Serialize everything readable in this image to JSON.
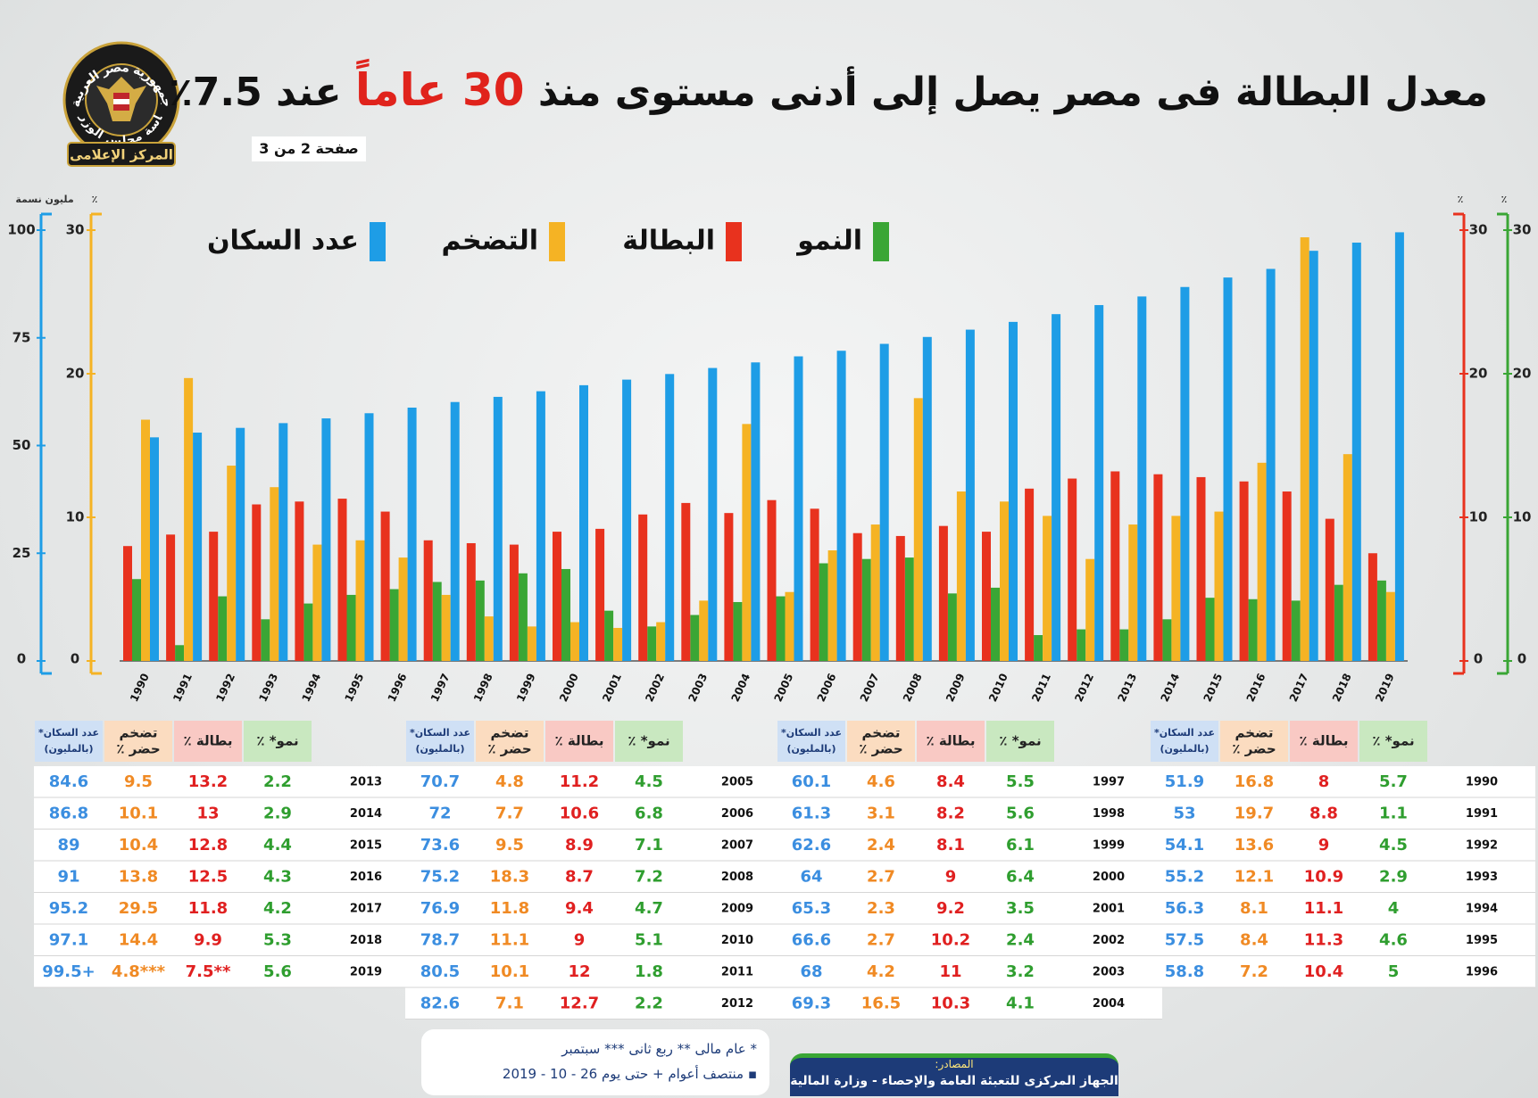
{
  "header": {
    "logo_top": "جمهورية مصر العربية",
    "logo_middle": "رئاسة مجلس الوزراء",
    "logo_bottom": "المركز الإعلامى",
    "title": [
      "معدل البطالة فى مصر يصل إلى أدنى مستوى منذ",
      "30 عاماً",
      "عند 7.5٪"
    ],
    "page": "صفحة 2 من 3"
  },
  "chart_data": {
    "type": "bar",
    "categories": [
      "1990",
      "1991",
      "1992",
      "1993",
      "1994",
      "1995",
      "1996",
      "1997",
      "1998",
      "1999",
      "2000",
      "2001",
      "2002",
      "2003",
      "2004",
      "2005",
      "2006",
      "2007",
      "2008",
      "2009",
      "2010",
      "2011",
      "2012",
      "2013",
      "2014",
      "2015",
      "2016",
      "2017",
      "2018",
      "2019"
    ],
    "series": [
      {
        "name": "النمو",
        "color": "#3aa635",
        "values": [
          5.7,
          1.1,
          4.5,
          2.9,
          4,
          4.6,
          5,
          5.5,
          5.6,
          6.1,
          6.4,
          3.5,
          2.4,
          3.2,
          4.1,
          4.5,
          6.8,
          7.1,
          7.2,
          4.7,
          5.1,
          1.8,
          2.2,
          2.2,
          2.9,
          4.4,
          4.3,
          4.2,
          5.3,
          5.6
        ]
      },
      {
        "name": "البطالة",
        "color": "#e8321e",
        "values": [
          8,
          8.8,
          9,
          10.9,
          11.1,
          11.3,
          10.4,
          8.4,
          8.2,
          8.1,
          9,
          9.2,
          10.2,
          11,
          10.3,
          11.2,
          10.6,
          8.9,
          8.7,
          9.4,
          9,
          12,
          12.7,
          13.2,
          13,
          12.8,
          12.5,
          11.8,
          9.9,
          7.5
        ],
        "value_labels": [
          null,
          null,
          null,
          null,
          null,
          null,
          null,
          null,
          null,
          null,
          null,
          null,
          null,
          null,
          null,
          null,
          null,
          null,
          null,
          null,
          null,
          null,
          null,
          null,
          null,
          null,
          null,
          null,
          null,
          "7.5**"
        ]
      },
      {
        "name": "التضخم",
        "color": "#f5b324",
        "values": [
          16.8,
          19.7,
          13.6,
          12.1,
          8.1,
          8.4,
          7.2,
          4.6,
          3.1,
          2.4,
          2.7,
          2.3,
          2.7,
          4.2,
          16.5,
          4.8,
          7.7,
          9.5,
          18.3,
          11.8,
          11.1,
          10.1,
          7.1,
          9.5,
          10.1,
          10.4,
          13.8,
          29.5,
          14.4,
          4.8
        ],
        "value_labels": [
          null,
          null,
          null,
          null,
          null,
          null,
          null,
          null,
          null,
          null,
          null,
          null,
          null,
          null,
          null,
          null,
          null,
          null,
          null,
          null,
          null,
          null,
          null,
          null,
          null,
          null,
          null,
          null,
          null,
          "4.8***"
        ]
      },
      {
        "name": "عدد السكان",
        "color": "#1e9de6",
        "axis": "y2",
        "values": [
          51.9,
          53,
          54.1,
          55.2,
          56.3,
          57.5,
          58.8,
          60.1,
          61.3,
          62.6,
          64,
          65.3,
          66.6,
          68,
          69.3,
          70.7,
          72,
          73.6,
          75.2,
          76.9,
          78.7,
          80.5,
          82.6,
          84.6,
          86.8,
          89,
          91,
          95.2,
          97.1,
          99.5
        ],
        "value_labels": [
          null,
          null,
          null,
          null,
          null,
          null,
          null,
          null,
          null,
          null,
          null,
          null,
          null,
          null,
          null,
          null,
          null,
          null,
          null,
          null,
          null,
          null,
          null,
          null,
          null,
          null,
          null,
          null,
          null,
          "99.5+"
        ]
      }
    ],
    "ylim": [
      0,
      30
    ],
    "yticks": [
      0,
      10,
      20,
      30
    ],
    "y_unit": "٪",
    "y2lim": [
      0,
      100
    ],
    "y2ticks": [
      0,
      25,
      50,
      75,
      100
    ],
    "y2_unit": "مليون نسمة"
  },
  "tables": {
    "headers": [
      [
        "نمو* ٪"
      ],
      [
        "بطالة ٪"
      ],
      [
        "تضخم",
        "حضر ٪"
      ],
      [
        "عدد السكان*",
        "(بالمليون)"
      ]
    ]
  },
  "footer": {
    "notes": "* عام مالى  ** ربع ثانى  *** سبتمبر",
    "period": "▪ منتصف أعوام + حتى يوم 26 - 10 - 2019",
    "sources_label": "المصادر:",
    "sources": "الجهاز المركزى للتعبئة العامة والإحصاء - وزارة المالية"
  }
}
